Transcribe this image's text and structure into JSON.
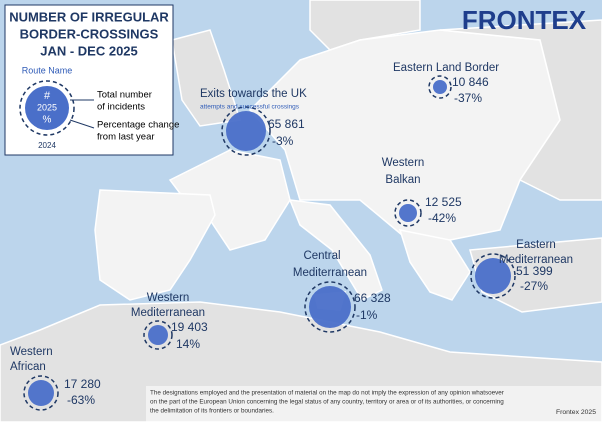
{
  "title": [
    "NUMBER OF IRREGULAR",
    "BORDER-CROSSINGS",
    "JAN - DEC 2025"
  ],
  "logo": "FRONTEX",
  "legend": {
    "route_name": "Route Name",
    "symbol": "#",
    "year": "2025",
    "pct": "%",
    "previous_year": "2024",
    "total": [
      "Total number",
      "of incidents"
    ],
    "change": [
      "Percentage change",
      "from last year"
    ]
  },
  "routes": [
    {
      "name": [
        "Eastern Land Border"
      ],
      "incidents": "10 846",
      "change": "-37%"
    },
    {
      "name": [
        "Exits towards the UK"
      ],
      "note": "attempts and successful crossings",
      "incidents": "65 861",
      "change": "-3%"
    },
    {
      "name": [
        "Western",
        "Balkan"
      ],
      "incidents": "12 525",
      "change": "-42%"
    },
    {
      "name": [
        "Eastern",
        "Mediterranean"
      ],
      "incidents": "51 399",
      "change": "-27%"
    },
    {
      "name": [
        "Central",
        "Mediterranean"
      ],
      "incidents": "66 328",
      "change": "-1%"
    },
    {
      "name": [
        "Western",
        "Mediterranean"
      ],
      "incidents": "19 403",
      "change": "14%"
    },
    {
      "name": [
        "Western",
        "African"
      ],
      "incidents": "17 280",
      "change": "-63%"
    }
  ],
  "disclaimer": [
    "The designations employed and the presentation of material on the map do not imply the expression of any opinion whatsoever",
    "on the part of the European Union concerning the legal status of any country, territory or area or of its authorities, or concerning",
    "the delimitation of its frontiers or boundaries."
  ],
  "credit": "Frontex 2025"
}
